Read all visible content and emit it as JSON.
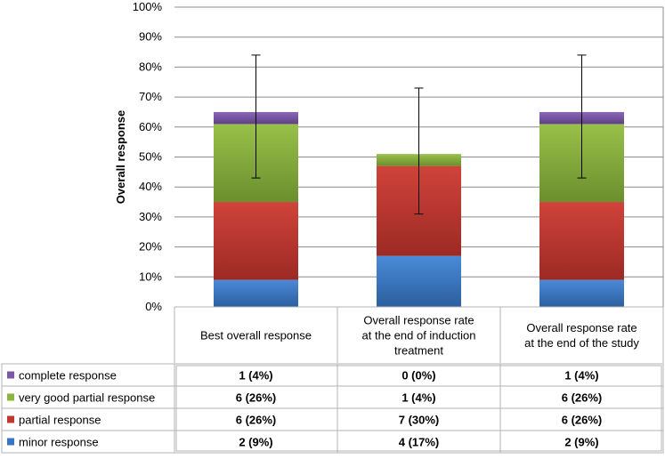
{
  "chart_data": {
    "type": "bar",
    "stacked": true,
    "ylabel": "Overall response",
    "ylim": [
      0,
      100
    ],
    "ytick_step": 10,
    "ytick_suffix": "%",
    "grid": true,
    "categories": [
      [
        "Best overall response"
      ],
      [
        "Overall response rate",
        "at the end of induction",
        "treatment"
      ],
      [
        "Overall response rate",
        "at the end of the study"
      ]
    ],
    "series": [
      {
        "name": "minor response",
        "color": "#3a75c4",
        "values": [
          9,
          17,
          9
        ],
        "labels": [
          "2 (9%)",
          "4 (17%)",
          "2 (9%)"
        ]
      },
      {
        "name": "partial response",
        "color": "#c0392f",
        "values": [
          26,
          30,
          26
        ],
        "labels": [
          "6 (26%)",
          "7 (30%)",
          "6 (26%)"
        ]
      },
      {
        "name": "very good partial response",
        "color": "#8db43f",
        "values": [
          26,
          4,
          26
        ],
        "labels": [
          "6 (26%)",
          "1 (4%)",
          "6 (26%)"
        ]
      },
      {
        "name": "complete response",
        "color": "#7b57a6",
        "values": [
          4,
          0,
          4
        ],
        "labels": [
          "1 (4%)",
          "0 (0%)",
          "1 (4%)"
        ]
      }
    ],
    "error_bars": [
      {
        "low": 43,
        "high": 84
      },
      {
        "low": 31,
        "high": 73
      },
      {
        "low": 43,
        "high": 84
      }
    ],
    "table_row_order": [
      "complete response",
      "very good partial response",
      "partial response",
      "minor response"
    ]
  }
}
